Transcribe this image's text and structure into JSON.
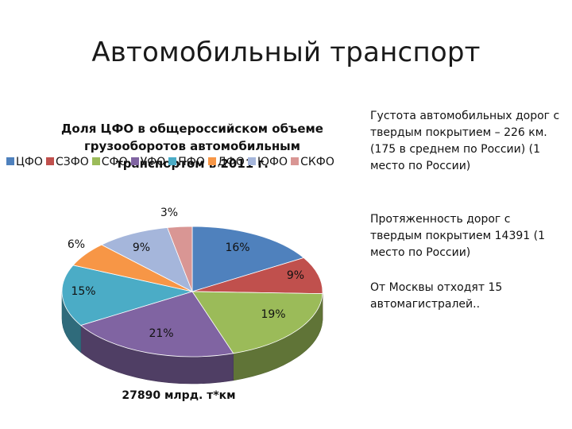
{
  "slide": {
    "title": "Автомобильный транспорт"
  },
  "chart_data": {
    "type": "pie",
    "title": "Доля ЦФО в общероссийском объеме грузооборотов автомобильным транспортом в 2011 г.",
    "categories": [
      "ЦФО",
      "СЗФО",
      "СФО",
      "УФО",
      "ПФО",
      "ДФО",
      "ЮФО",
      "СКФО"
    ],
    "series": [
      {
        "values": [
          16,
          9,
          19,
          21,
          15,
          6,
          9,
          3
        ],
        "labels": [
          "16%",
          "9%",
          "19%",
          "21%",
          "15%",
          "6%",
          "9%",
          "3%"
        ],
        "colors": [
          "#4F81BD",
          "#C0504D",
          "#9BBB59",
          "#8064A2",
          "#4BACC6",
          "#F79646",
          "#A5B6DB",
          "#D99694"
        ]
      }
    ],
    "legend_position": "top",
    "three_d": true,
    "caption": "27890 млрд. т*км"
  },
  "notes": {
    "road_density": "Густота автомобильных дорог с твердым покрытием – 226 км.(175 в среднем по России) (1 место по России)",
    "road_length": "Протяженность дорог с твердым покрытием 14391 (1 место по России)",
    "highways": "От Москвы отходят 15 автомагистралей.."
  }
}
